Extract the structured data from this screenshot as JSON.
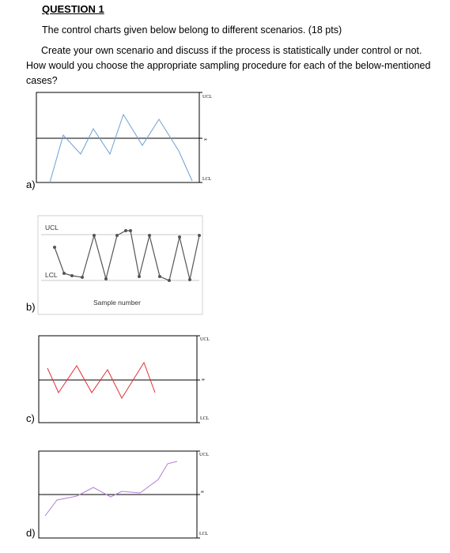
{
  "question": {
    "title": "QUESTION 1",
    "intro": "The control charts given below belong to different scenarios. (18 pts)",
    "task": "Create your own scenario and discuss if the process is statistically under control or not. How would you choose the appropriate sampling procedure for each of the below-mentioned cases?"
  },
  "charts": {
    "a": {
      "label": "a)",
      "ucl": "UCL",
      "center": "x̄",
      "lcl": "LCL",
      "color": "#6f9fd0"
    },
    "b": {
      "label": "b)",
      "ucl": "UCL",
      "lcl": "LCL",
      "xlabel": "Sample number",
      "color": "#555555"
    },
    "c": {
      "label": "c)",
      "ucl": "UCL",
      "center": "x̄",
      "lcl": "LCL",
      "color": "#e0303a"
    },
    "d": {
      "label": "d)",
      "ucl": "UCL",
      "center": "x̄",
      "lcl": "LCL",
      "color": "#b77bd6"
    }
  }
}
